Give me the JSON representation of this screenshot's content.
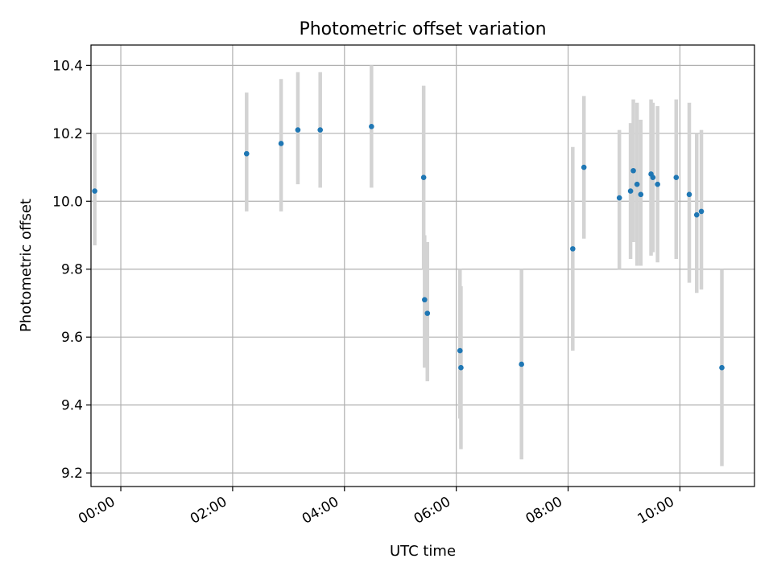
{
  "chart_data": {
    "type": "scatter",
    "title": "Photometric offset variation",
    "xlabel": "UTC time",
    "ylabel": "Photometric offset",
    "x_unit": "time of day (HH:MM, UTC)",
    "xlim": [
      "-00:32",
      "11:20"
    ],
    "ylim": [
      9.16,
      10.46
    ],
    "xticks": [
      "00:00",
      "02:00",
      "04:00",
      "06:00",
      "08:00",
      "10:00"
    ],
    "yticks": [
      "9.2",
      "9.4",
      "9.6",
      "9.8",
      "10.0",
      "10.2",
      "10.4"
    ],
    "grid": true,
    "legend": "none",
    "colors": {
      "points": "#1f77b4",
      "errorbars": "#d3d3d3",
      "grid": "#b0b0b0"
    },
    "series": [
      {
        "points": [
          {
            "x": "-00:28",
            "y": 10.03,
            "ylow": 9.87,
            "yhigh": 10.2
          },
          {
            "x": "02:15",
            "y": 10.14,
            "ylow": 9.97,
            "yhigh": 10.32
          },
          {
            "x": "02:52",
            "y": 10.17,
            "ylow": 9.97,
            "yhigh": 10.36
          },
          {
            "x": "03:10",
            "y": 10.21,
            "ylow": 10.05,
            "yhigh": 10.38
          },
          {
            "x": "03:34",
            "y": 10.21,
            "ylow": 10.04,
            "yhigh": 10.38
          },
          {
            "x": "04:29",
            "y": 10.22,
            "ylow": 10.04,
            "yhigh": 10.4
          },
          {
            "x": "05:25",
            "y": 10.07,
            "ylow": 9.8,
            "yhigh": 10.34
          },
          {
            "x": "05:26",
            "y": 9.71,
            "ylow": 9.51,
            "yhigh": 9.9
          },
          {
            "x": "05:29",
            "y": 9.67,
            "ylow": 9.47,
            "yhigh": 9.88
          },
          {
            "x": "06:04",
            "y": 9.56,
            "ylow": 9.36,
            "yhigh": 9.8
          },
          {
            "x": "06:05",
            "y": 9.51,
            "ylow": 9.27,
            "yhigh": 9.75
          },
          {
            "x": "07:10",
            "y": 9.52,
            "ylow": 9.24,
            "yhigh": 9.8
          },
          {
            "x": "08:05",
            "y": 9.86,
            "ylow": 9.56,
            "yhigh": 10.16
          },
          {
            "x": "08:17",
            "y": 10.1,
            "ylow": 9.89,
            "yhigh": 10.31
          },
          {
            "x": "08:55",
            "y": 10.01,
            "ylow": 9.8,
            "yhigh": 10.21
          },
          {
            "x": "09:07",
            "y": 10.03,
            "ylow": 9.83,
            "yhigh": 10.23
          },
          {
            "x": "09:10",
            "y": 10.09,
            "ylow": 9.88,
            "yhigh": 10.3
          },
          {
            "x": "09:14",
            "y": 10.05,
            "ylow": 9.81,
            "yhigh": 10.29
          },
          {
            "x": "09:18",
            "y": 10.02,
            "ylow": 9.81,
            "yhigh": 10.24
          },
          {
            "x": "09:29",
            "y": 10.08,
            "ylow": 9.84,
            "yhigh": 10.3
          },
          {
            "x": "09:31",
            "y": 10.07,
            "ylow": 9.85,
            "yhigh": 10.29
          },
          {
            "x": "09:36",
            "y": 10.05,
            "ylow": 9.82,
            "yhigh": 10.28
          },
          {
            "x": "09:56",
            "y": 10.07,
            "ylow": 9.83,
            "yhigh": 10.3
          },
          {
            "x": "10:10",
            "y": 10.02,
            "ylow": 9.76,
            "yhigh": 10.29
          },
          {
            "x": "10:18",
            "y": 9.96,
            "ylow": 9.73,
            "yhigh": 10.2
          },
          {
            "x": "10:23",
            "y": 9.97,
            "ylow": 9.74,
            "yhigh": 10.21
          },
          {
            "x": "10:45",
            "y": 9.51,
            "ylow": 9.22,
            "yhigh": 9.8
          }
        ]
      }
    ]
  }
}
